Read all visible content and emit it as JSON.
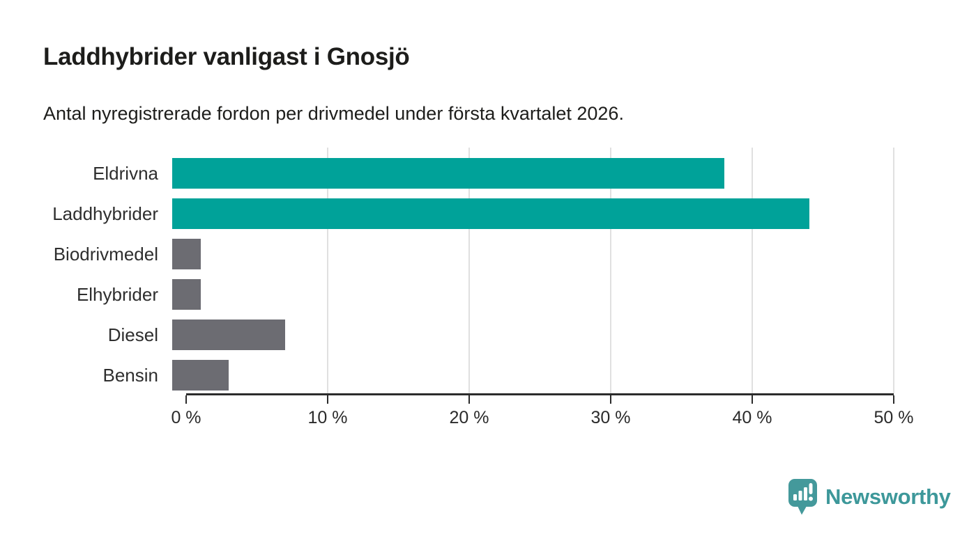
{
  "header": {
    "title": "Laddhybrider vanligast i Gnosjö",
    "subtitle": "Antal nyregistrerade fordon per drivmedel under första kvartalet 2026."
  },
  "chart_data": {
    "type": "bar",
    "orientation": "horizontal",
    "title": "Laddhybrider vanligast i Gnosjö",
    "subtitle": "Antal nyregistrerade fordon per drivmedel under första kvartalet 2026.",
    "categories": [
      "Eldrivna",
      "Laddhybrider",
      "Biodrivmedel",
      "Elhybrider",
      "Diesel",
      "Bensin"
    ],
    "values": [
      39,
      45,
      2,
      2,
      8,
      4
    ],
    "unit": "%",
    "xlim": [
      0,
      50
    ],
    "xticks": [
      0,
      10,
      20,
      30,
      40,
      50
    ],
    "xtick_labels": [
      "0 %",
      "10 %",
      "20 %",
      "30 %",
      "40 %",
      "50 %"
    ],
    "grid": true,
    "legend": false,
    "highlighted_categories": [
      "Eldrivna",
      "Laddhybrider"
    ],
    "colors": {
      "highlight": "#00a299",
      "default": "#6c6c72",
      "gridline": "#e0e0e0",
      "axis": "#2b2b2b"
    },
    "bar_colors": [
      "#00a299",
      "#00a299",
      "#6c6c72",
      "#6c6c72",
      "#6c6c72",
      "#6c6c72"
    ]
  },
  "footer": {
    "brand_name": "Newsworthy",
    "brand_color": "#3d989a",
    "logo_icon": "bar-chart-speech-bubble"
  }
}
